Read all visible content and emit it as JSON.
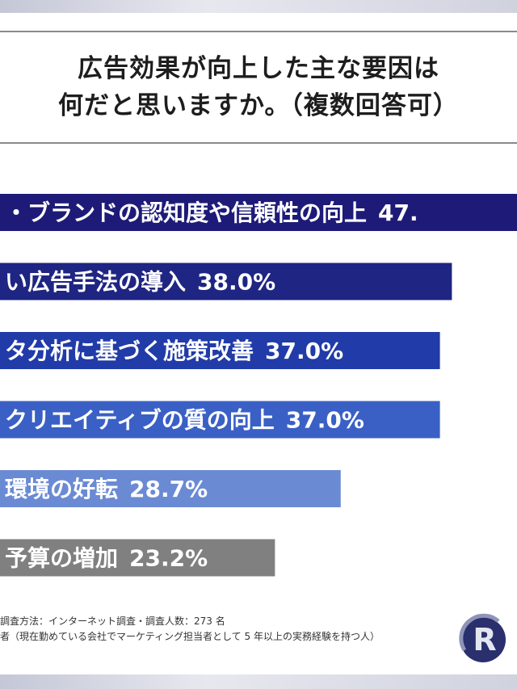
{
  "title": {
    "line1": "広告効果が向上した主な要因は",
    "line2": "何だと思いますか。（複数回答可）"
  },
  "chart_data": {
    "type": "bar",
    "orientation": "horizontal",
    "categories": [
      "・ブランドの認知度や信頼性の向上",
      "い広告手法の導入",
      "タ分析に基づく施策改善",
      "クリエイティブの質の向上",
      "環境の好転",
      "予算の増加"
    ],
    "values": [
      47.0,
      38.0,
      37.0,
      37.0,
      28.7,
      23.2
    ],
    "value_labels": [
      "47.",
      "38.0%",
      "37.0%",
      "37.0%",
      "28.7%",
      "23.2%"
    ],
    "unit": "%",
    "colors": [
      "#1e1b78",
      "#1f2582",
      "#213ba8",
      "#3a60c6",
      "#6a8ad4",
      "#808080"
    ]
  },
  "notes": {
    "line1": "調査方法：インターネット調査・調査人数：273 名",
    "line2": "者（現在勤めている会社でマーケティング担当者として 5 年以上の実務経験を持つ人）"
  },
  "logo": {
    "icon": "lr-logo-icon",
    "letter": "R"
  }
}
